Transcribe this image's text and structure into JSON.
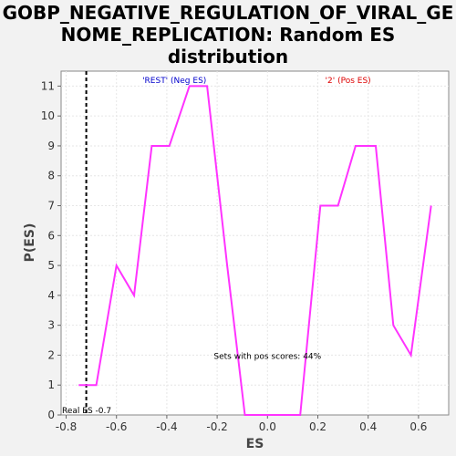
{
  "title_lines": [
    "GOBP_NEGATIVE_REGULATION_OF_VIRAL_GE",
    "NOME_REPLICATION: Random ES",
    "distribution"
  ],
  "chart_data": {
    "type": "line",
    "title": "GOBP_NEGATIVE_REGULATION_OF_VIRAL_GENOME_REPLICATION: Random ES distribution",
    "xlabel": "ES",
    "ylabel": "P(ES)",
    "xlim": [
      -0.82,
      0.72
    ],
    "ylim": [
      0,
      11.5
    ],
    "xticks": [
      -0.8,
      -0.6,
      -0.4,
      -0.2,
      0.0,
      0.2,
      0.4,
      0.6
    ],
    "xtick_labels": [
      "-0.8",
      "-0.6",
      "-0.4",
      "-0.2",
      "0.0",
      "0.2",
      "0.4",
      "0.6"
    ],
    "yticks": [
      0,
      1,
      2,
      3,
      4,
      5,
      6,
      7,
      8,
      9,
      10,
      11
    ],
    "ytick_labels": [
      "0",
      "1",
      "2",
      "3",
      "4",
      "5",
      "6",
      "7",
      "8",
      "9",
      "10",
      "11"
    ],
    "grid": true,
    "series": [
      {
        "color": "#ff33ff",
        "x": [
          -0.75,
          -0.68,
          -0.6,
          -0.53,
          -0.46,
          -0.39,
          -0.31,
          -0.24,
          -0.16,
          -0.09,
          -0.01,
          0.06,
          0.13,
          0.21,
          0.28,
          0.35,
          0.43,
          0.5,
          0.57,
          0.65
        ],
        "y": [
          1,
          1,
          5,
          4,
          9,
          9,
          11,
          11,
          5,
          0,
          0,
          0,
          0,
          7,
          7,
          9,
          9,
          3,
          2,
          7
        ]
      }
    ],
    "real_es": -0.72,
    "real_es_label": "Real ES -0.7",
    "neg_label": "'REST' (Neg ES)",
    "pos_label": "'2' (Pos ES)",
    "pos_scores_label": "Sets with pos scores: 44%",
    "neg_color": "#0000cc",
    "pos_color": "#dd0000"
  }
}
